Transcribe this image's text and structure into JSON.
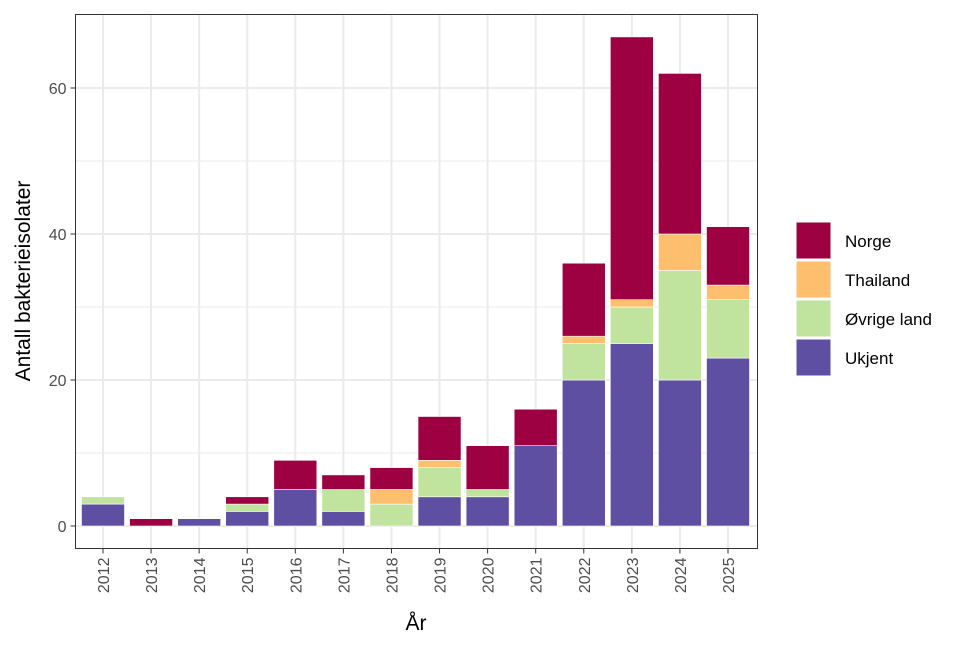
{
  "chart_data": {
    "type": "bar",
    "stacked": true,
    "xlabel": "År",
    "ylabel": "Antall bakterieisolater",
    "ylim": [
      -3,
      70
    ],
    "yticks": [
      0,
      20,
      40,
      60
    ],
    "grid": true,
    "legend_position": "right",
    "categories": [
      "2012",
      "2013",
      "2014",
      "2015",
      "2016",
      "2017",
      "2018",
      "2019",
      "2020",
      "2021",
      "2022",
      "2023",
      "2024",
      "2025"
    ],
    "series": [
      {
        "name": "Ukjent",
        "color": "#5E4FA2",
        "values": [
          3,
          0,
          1,
          2,
          5,
          2,
          0,
          4,
          4,
          11,
          20,
          25,
          20,
          23
        ]
      },
      {
        "name": "Øvrige land",
        "color": "#C0E49E",
        "values": [
          1,
          0,
          0,
          1,
          0,
          3,
          3,
          4,
          1,
          0,
          5,
          5,
          15,
          8
        ]
      },
      {
        "name": "Thailand",
        "color": "#FDBE6E",
        "values": [
          0,
          0,
          0,
          0,
          0,
          0,
          2,
          1,
          0,
          0,
          1,
          1,
          5,
          2
        ]
      },
      {
        "name": "Norge",
        "color": "#9E0142",
        "values": [
          0,
          1,
          0,
          1,
          4,
          2,
          3,
          6,
          6,
          5,
          10,
          36,
          22,
          8
        ]
      }
    ],
    "legend_order": [
      "Norge",
      "Thailand",
      "Øvrige land",
      "Ukjent"
    ]
  }
}
